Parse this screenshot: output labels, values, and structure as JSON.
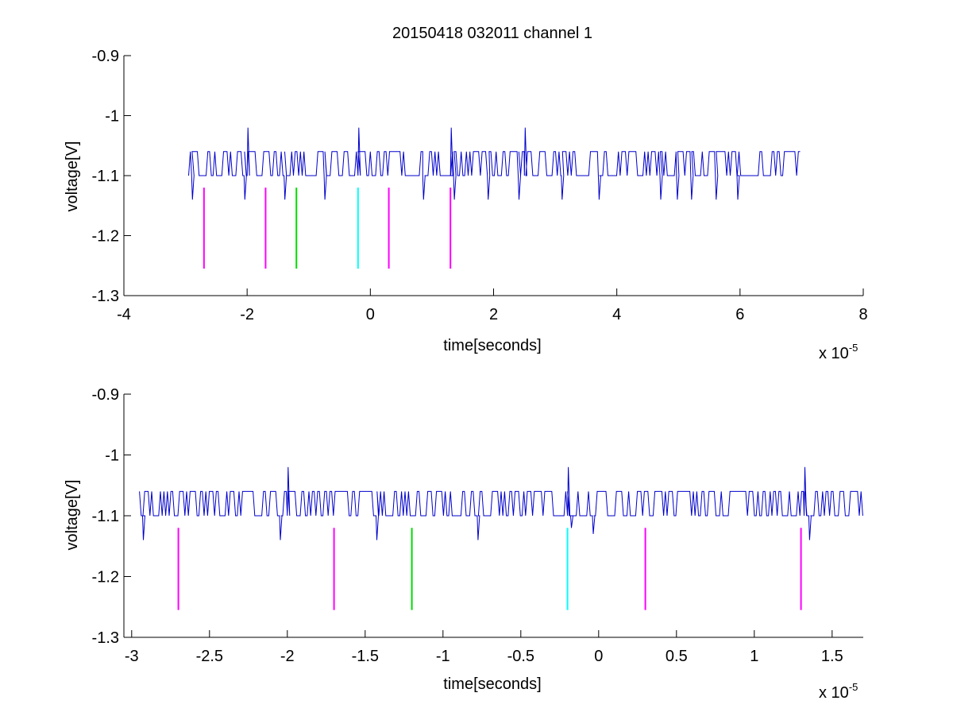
{
  "figure_title": "20150418 032011 channel 1",
  "colors": {
    "signal": "#0000cc",
    "magenta": "#ff00ff",
    "green": "#00dd00",
    "cyan": "#00ffff",
    "axis": "#000000"
  },
  "chart_data": [
    {
      "type": "line",
      "title": "20150418 032011 channel 1",
      "xlabel": "time[seconds]",
      "ylabel": "voltage[V]",
      "x_exponent_label": "x 10",
      "x_exponent": "-5",
      "xlim": [
        -4,
        8
      ],
      "ylim": [
        -1.3,
        -0.9
      ],
      "y_reversed": true,
      "xticks": [
        -4,
        -2,
        0,
        2,
        4,
        6,
        8
      ],
      "xtick_labels": [
        "-4",
        "-2",
        "0",
        "2",
        "4",
        "6",
        "8"
      ],
      "yticks": [
        -0.9,
        -1,
        -1.1,
        -1.2,
        -1.3
      ],
      "ytick_labels": [
        "-0.9",
        "-1",
        "-1.1",
        "-1.2",
        "-1.3"
      ],
      "signal": {
        "x_range": [
          -2.95,
          7.0
        ],
        "baseline": -1.1,
        "high_level": -1.06,
        "spikes_up": [
          {
            "x": -2.0,
            "y": -1.02
          },
          {
            "x": -0.2,
            "y": -1.02
          },
          {
            "x": 1.3,
            "y": -1.02
          },
          {
            "x": 2.5,
            "y": -1.02
          }
        ],
        "dips": [
          {
            "x": -2.9,
            "y": -1.14
          },
          {
            "x": -2.05,
            "y": -1.14
          },
          {
            "x": -1.4,
            "y": -1.14
          },
          {
            "x": -0.75,
            "y": -1.14
          },
          {
            "x": 0.85,
            "y": -1.14
          },
          {
            "x": 1.35,
            "y": -1.14
          },
          {
            "x": 1.9,
            "y": -1.14
          },
          {
            "x": 2.4,
            "y": -1.14
          },
          {
            "x": 3.1,
            "y": -1.14
          },
          {
            "x": 3.7,
            "y": -1.14
          },
          {
            "x": 4.7,
            "y": -1.14
          },
          {
            "x": 4.97,
            "y": -1.14
          },
          {
            "x": 5.2,
            "y": -1.14
          },
          {
            "x": 5.6,
            "y": -1.14
          },
          {
            "x": 5.95,
            "y": -1.14
          }
        ]
      },
      "markers": [
        {
          "x": -2.7,
          "y_top": -1.12,
          "y_bottom": -1.255,
          "color": "magenta"
        },
        {
          "x": -1.7,
          "y_top": -1.12,
          "y_bottom": -1.255,
          "color": "magenta"
        },
        {
          "x": -1.2,
          "y_top": -1.12,
          "y_bottom": -1.255,
          "color": "green"
        },
        {
          "x": -0.2,
          "y_top": -1.12,
          "y_bottom": -1.255,
          "color": "cyan"
        },
        {
          "x": 0.3,
          "y_top": -1.12,
          "y_bottom": -1.255,
          "color": "magenta"
        },
        {
          "x": 1.3,
          "y_top": -1.12,
          "y_bottom": -1.255,
          "color": "magenta"
        }
      ]
    },
    {
      "type": "line",
      "title": "",
      "xlabel": "time[seconds]",
      "ylabel": "voltage[V]",
      "x_exponent_label": "x 10",
      "x_exponent": "-5",
      "xlim": [
        -3.05,
        1.7
      ],
      "ylim": [
        -1.3,
        -0.9
      ],
      "y_reversed": true,
      "xticks": [
        -3,
        -2.5,
        -2,
        -1.5,
        -1,
        -0.5,
        0,
        0.5,
        1,
        1.5
      ],
      "xtick_labels": [
        "-3",
        "-2.5",
        "-2",
        "-1.5",
        "-1",
        "-0.5",
        "0",
        "0.5",
        "1",
        "1.5"
      ],
      "yticks": [
        -0.9,
        -1,
        -1.1,
        -1.2,
        -1.3
      ],
      "ytick_labels": [
        "-0.9",
        "-1",
        "-1.1",
        "-1.2",
        "-1.3"
      ],
      "signal": {
        "x_range": [
          -2.95,
          1.7
        ],
        "baseline": -1.1,
        "high_level": -1.06,
        "spikes_up": [
          {
            "x": -2.0,
            "y": -1.02
          },
          {
            "x": -0.2,
            "y": -1.02
          },
          {
            "x": 1.32,
            "y": -1.02
          }
        ],
        "dips": [
          {
            "x": -2.93,
            "y": -1.14
          },
          {
            "x": -2.05,
            "y": -1.14
          },
          {
            "x": -1.43,
            "y": -1.14
          },
          {
            "x": -0.78,
            "y": -1.14
          },
          {
            "x": -0.18,
            "y": -1.12
          },
          {
            "x": -0.04,
            "y": -1.13
          },
          {
            "x": 1.35,
            "y": -1.14
          }
        ]
      },
      "markers": [
        {
          "x": -2.7,
          "y_top": -1.12,
          "y_bottom": -1.255,
          "color": "magenta"
        },
        {
          "x": -1.7,
          "y_top": -1.12,
          "y_bottom": -1.255,
          "color": "magenta"
        },
        {
          "x": -1.2,
          "y_top": -1.12,
          "y_bottom": -1.255,
          "color": "green"
        },
        {
          "x": -0.2,
          "y_top": -1.12,
          "y_bottom": -1.255,
          "color": "cyan"
        },
        {
          "x": 0.3,
          "y_top": -1.12,
          "y_bottom": -1.255,
          "color": "magenta"
        },
        {
          "x": 1.3,
          "y_top": -1.12,
          "y_bottom": -1.255,
          "color": "magenta"
        }
      ]
    }
  ]
}
